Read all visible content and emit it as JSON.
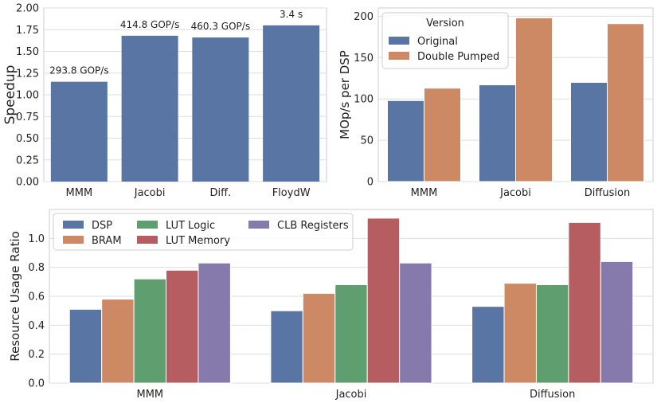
{
  "chart_data": [
    {
      "type": "bar",
      "id": "speedup",
      "categories": [
        "MMM",
        "Jacobi",
        "Diff.",
        "FloydW"
      ],
      "values": [
        1.15,
        1.68,
        1.66,
        1.8
      ],
      "annotations": [
        "293.8 GOP/s",
        "414.8 GOP/s",
        "460.3 GOP/s",
        "3.4 s"
      ],
      "ylabel": "Speedup",
      "xlabel": "",
      "ylim": [
        0,
        2.0
      ],
      "yticks": [
        0.0,
        0.25,
        0.5,
        0.75,
        1.0,
        1.25,
        1.5,
        1.75,
        2.0
      ],
      "ytick_labels": [
        "0.00",
        "0.25",
        "0.50",
        "0.75",
        "1.00",
        "1.25",
        "1.50",
        "1.75",
        "2.00"
      ],
      "grid": true
    },
    {
      "type": "bar",
      "id": "mops",
      "categories": [
        "MMM",
        "Jacobi",
        "Diffusion"
      ],
      "series": [
        {
          "name": "Original",
          "color": "#5875a4",
          "values": [
            98,
            117,
            120
          ]
        },
        {
          "name": "Double Pumped",
          "color": "#cc8963",
          "values": [
            113,
            198,
            191
          ]
        }
      ],
      "legend_title": "Version",
      "legend_position": "top-left",
      "ylabel": "MOp/s per DSP",
      "xlabel": "",
      "ylim": [
        0,
        210
      ],
      "yticks": [
        0,
        50,
        100,
        150,
        200
      ],
      "ytick_labels": [
        "0",
        "50",
        "100",
        "150",
        "200"
      ],
      "grid": true
    },
    {
      "type": "bar",
      "id": "resources",
      "categories": [
        "MMM",
        "Jacobi",
        "Diffusion"
      ],
      "series": [
        {
          "name": "DSP",
          "color": "#5875a4",
          "values": [
            0.51,
            0.5,
            0.53
          ]
        },
        {
          "name": "BRAM",
          "color": "#cc8963",
          "values": [
            0.58,
            0.62,
            0.69
          ]
        },
        {
          "name": "LUT Logic",
          "color": "#5f9e6e",
          "values": [
            0.72,
            0.68,
            0.68
          ]
        },
        {
          "name": "LUT Memory",
          "color": "#b55d60",
          "values": [
            0.78,
            1.14,
            1.11
          ]
        },
        {
          "name": "CLB Registers",
          "color": "#857aab",
          "values": [
            0.83,
            0.83,
            0.84
          ]
        }
      ],
      "legend_position": "top-left",
      "ylabel": "Resource Usage Ratio",
      "xlabel": "",
      "ylim": [
        0,
        1.2
      ],
      "yticks": [
        0.0,
        0.2,
        0.4,
        0.6,
        0.8,
        1.0
      ],
      "ytick_labels": [
        "0.0",
        "0.2",
        "0.4",
        "0.6",
        "0.8",
        "1.0"
      ],
      "grid": true
    }
  ]
}
